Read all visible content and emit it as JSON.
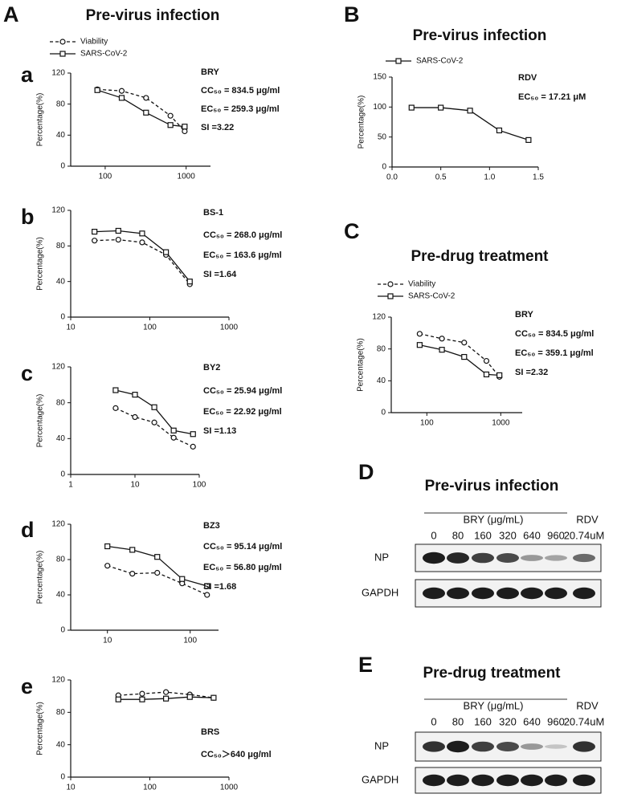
{
  "panel_A": {
    "letter": "A",
    "title": "Pre-virus infection"
  },
  "chart_data": [
    {
      "type": "line",
      "panel": "a",
      "legend": true,
      "ylabel": "Percentage(%)",
      "xscale": "log",
      "xlim": [
        37.5,
        2000
      ],
      "xticks": [
        100,
        1000
      ],
      "ylim": [
        0,
        120
      ],
      "yticks": [
        0,
        40,
        80,
        120
      ],
      "x": [
        80,
        160,
        320,
        640,
        960
      ],
      "series": [
        {
          "name": "Viability",
          "color": "#111111",
          "style": "dashed",
          "marker": "circle",
          "values": [
            99,
            97,
            88,
            65,
            45
          ]
        },
        {
          "name": "SARS-CoV-2",
          "color": "#111111",
          "style": "solid",
          "marker": "square",
          "values": [
            98,
            88,
            69,
            53,
            51
          ]
        }
      ],
      "annotations": [
        "BRY",
        "CC₅₀ = 834.5 μg/ml",
        "EC₅₀ = 259.3 μg/ml",
        "SI =3.22"
      ]
    },
    {
      "type": "line",
      "panel": "b",
      "legend": false,
      "ylabel": "Percentage(%)",
      "xscale": "log",
      "xlim": [
        10,
        1000
      ],
      "xticks": [
        10,
        100,
        1000
      ],
      "ylim": [
        0,
        120
      ],
      "yticks": [
        0,
        40,
        80,
        120
      ],
      "x": [
        20,
        40,
        80,
        160,
        320
      ],
      "series": [
        {
          "name": "Viability",
          "color": "#111111",
          "style": "dashed",
          "marker": "circle",
          "values": [
            86,
            87,
            84,
            70,
            37
          ]
        },
        {
          "name": "SARS-CoV-2",
          "color": "#111111",
          "style": "solid",
          "marker": "square",
          "values": [
            96,
            97,
            94,
            73,
            40
          ]
        }
      ],
      "annotations": [
        "BS-1",
        "CC₅₀ = 268.0 μg/ml",
        "EC₅₀ = 163.6 μg/ml",
        "SI =1.64"
      ]
    },
    {
      "type": "line",
      "panel": "c",
      "legend": false,
      "ylabel": "Percentage(%)",
      "xscale": "log",
      "xlim": [
        1,
        100
      ],
      "xticks": [
        1,
        10,
        100
      ],
      "ylim": [
        0,
        120
      ],
      "yticks": [
        0,
        40,
        80,
        120
      ],
      "x": [
        5,
        10,
        20,
        40,
        80
      ],
      "series": [
        {
          "name": "Viability",
          "color": "#111111",
          "style": "dashed",
          "marker": "circle",
          "values": [
            74,
            64,
            58,
            41,
            31
          ]
        },
        {
          "name": "SARS-CoV-2",
          "color": "#111111",
          "style": "solid",
          "marker": "square",
          "values": [
            94,
            89,
            75,
            49,
            45
          ]
        }
      ],
      "annotations": [
        "BY2",
        "CC₅₀ = 25.94 μg/ml",
        "EC₅₀ = 22.92 μg/ml",
        "SI =1.13"
      ]
    },
    {
      "type": "line",
      "panel": "d",
      "legend": false,
      "ylabel": "Percentage(%)",
      "xscale": "log",
      "xlim": [
        3.6,
        220
      ],
      "xticks": [
        10,
        100
      ],
      "ylim": [
        0,
        120
      ],
      "yticks": [
        0,
        40,
        80,
        120
      ],
      "x": [
        10,
        20,
        40,
        80,
        160
      ],
      "series": [
        {
          "name": "Viability",
          "color": "#111111",
          "style": "dashed",
          "marker": "circle",
          "values": [
            73,
            64,
            65,
            53,
            40
          ]
        },
        {
          "name": "SARS-CoV-2",
          "color": "#111111",
          "style": "solid",
          "marker": "square",
          "values": [
            95,
            91,
            83,
            58,
            50
          ]
        }
      ],
      "annotations": [
        "BZ3",
        "CC₅₀ = 95.14 μg/ml",
        "EC₅₀ = 56.80 μg/ml",
        "SI =1.68"
      ]
    },
    {
      "type": "line",
      "panel": "e",
      "legend": false,
      "ylabel": "Percentage(%)",
      "xscale": "log",
      "xlim": [
        10,
        1000
      ],
      "xticks": [
        10,
        100,
        1000
      ],
      "ylim": [
        0,
        120
      ],
      "yticks": [
        0,
        40,
        80,
        120
      ],
      "x": [
        40,
        80,
        160,
        320,
        640
      ],
      "series": [
        {
          "name": "Viability",
          "color": "#111111",
          "style": "dashed",
          "marker": "circle",
          "values": [
            101,
            103,
            105,
            102,
            98
          ]
        },
        {
          "name": "SARS-CoV-2",
          "color": "#111111",
          "style": "solid",
          "marker": "square",
          "values": [
            96,
            96,
            97,
            99,
            98
          ]
        }
      ],
      "annotations": [
        "BRS",
        "CC₅₀＞640 μg/ml"
      ]
    },
    {
      "type": "line",
      "panel": "B",
      "title": "Pre-virus infection",
      "legend": true,
      "ylabel": "Percentage(%)",
      "xscale": "linear",
      "xlim": [
        0,
        1.5
      ],
      "xticks": [
        {
          "value": 0,
          "label": "0.0"
        },
        {
          "value": 0.5,
          "label": "0.5"
        },
        {
          "value": 1,
          "label": "1.0"
        },
        {
          "value": 1.5,
          "label": "1.5"
        }
      ],
      "ylim": [
        0,
        150
      ],
      "yticks": [
        0,
        50,
        100,
        150
      ],
      "x": [
        0.2,
        0.5,
        0.8,
        1.1,
        1.4
      ],
      "series": [
        {
          "name": "SARS-CoV-2",
          "color": "#111111",
          "style": "solid",
          "marker": "square",
          "values": [
            99,
            99,
            94,
            61,
            45
          ]
        }
      ],
      "annotations": [
        "RDV",
        "EC₅₀ = 17.21 μM"
      ]
    },
    {
      "type": "line",
      "panel": "C",
      "title": "Pre-drug treatment",
      "legend": true,
      "ylabel": "Percentage(%)",
      "xscale": "log",
      "xlim": [
        33,
        1950
      ],
      "xticks": [
        100,
        1000
      ],
      "ylim": [
        0,
        120
      ],
      "yticks": [
        0,
        40,
        80,
        120
      ],
      "x": [
        80,
        160,
        320,
        640,
        960
      ],
      "series": [
        {
          "name": "Viability",
          "color": "#111111",
          "style": "dashed",
          "marker": "circle",
          "values": [
            99,
            93,
            88,
            65,
            45
          ]
        },
        {
          "name": "SARS-CoV-2",
          "color": "#111111",
          "style": "solid",
          "marker": "square",
          "values": [
            85,
            79,
            70,
            48,
            47
          ]
        }
      ],
      "annotations": [
        "BRY",
        "CC₅₀ = 834.5 μg/ml",
        "EC₅₀ = 359.1 μg/ml",
        "SI =2.32"
      ]
    }
  ],
  "blots": [
    {
      "panel": "D",
      "title": "Pre-virus infection",
      "group_label": "BRY (μg/mL)",
      "concentrations": [
        0,
        80,
        160,
        320,
        640,
        960
      ],
      "control_label": "RDV",
      "control_dose": "20.74uM",
      "rows": [
        "NP",
        "GAPDH"
      ]
    },
    {
      "panel": "E",
      "title": "Pre-drug treatment",
      "group_label": "BRY (μg/mL)",
      "concentrations": [
        0,
        80,
        160,
        320,
        640,
        960
      ],
      "control_label": "RDV",
      "control_dose": "20.74uM",
      "rows": [
        "NP",
        "GAPDH"
      ]
    }
  ]
}
